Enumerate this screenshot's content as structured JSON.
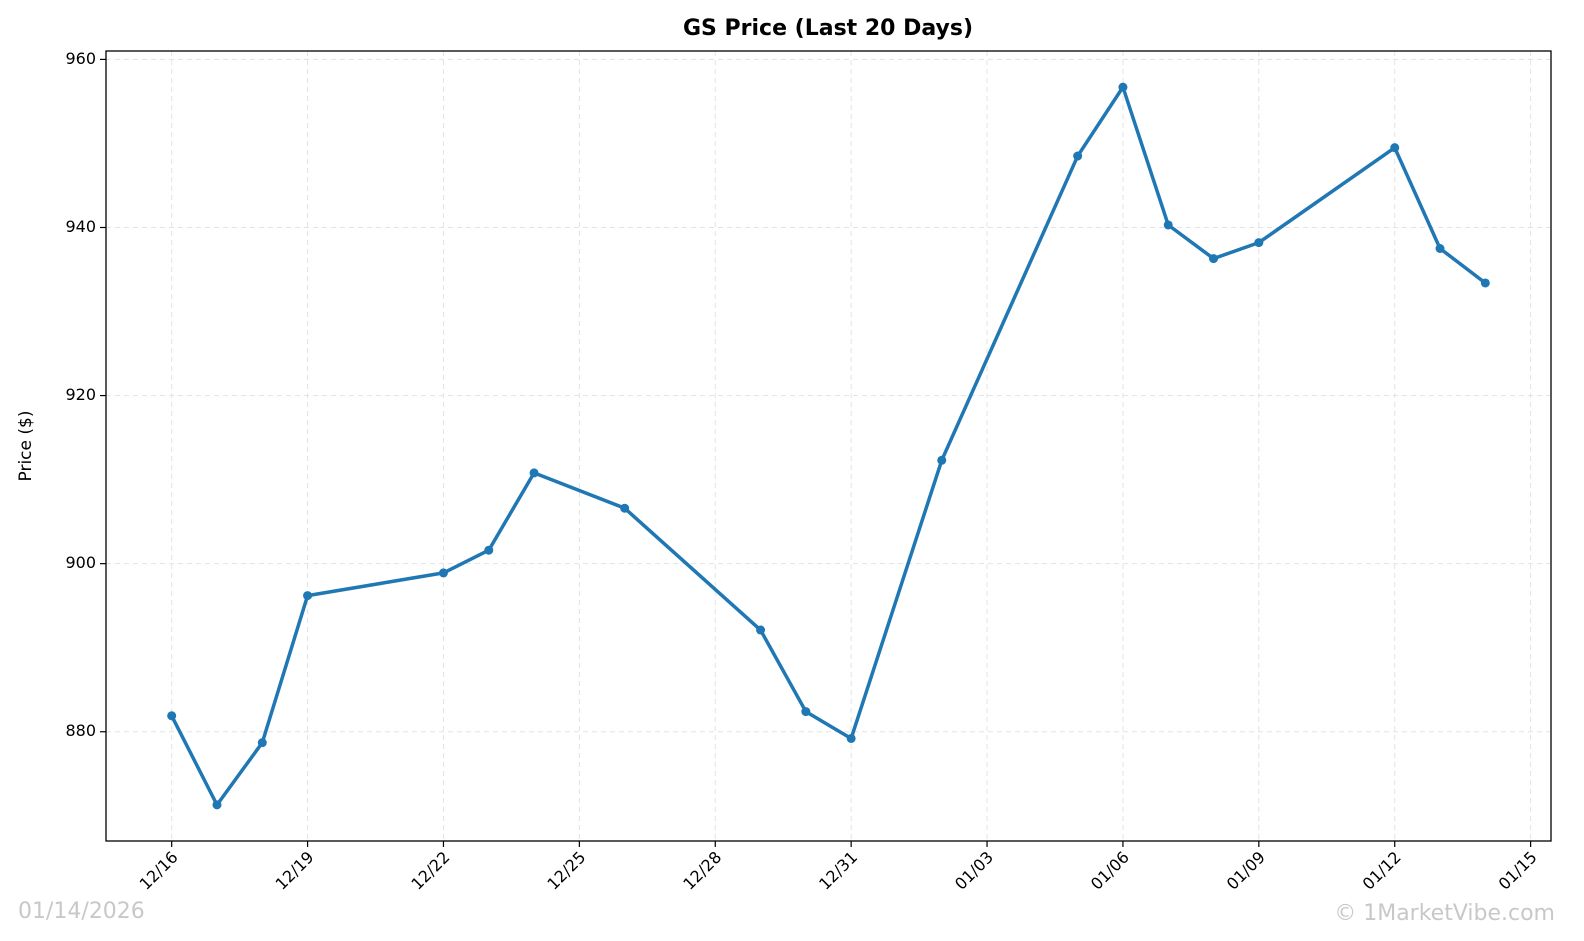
{
  "chart_data": {
    "type": "line",
    "title": "GS Price (Last 20 Days)",
    "ylabel": "Price ($)",
    "x": [
      "12/16",
      "12/17",
      "12/18",
      "12/19",
      "12/22",
      "12/23",
      "12/24",
      "12/26",
      "12/29",
      "12/30",
      "12/31",
      "01/02",
      "01/05",
      "01/06",
      "01/07",
      "01/08",
      "01/09",
      "01/12",
      "01/13",
      "01/14"
    ],
    "series": [
      {
        "name": "GS",
        "color": "#1f77b4",
        "values": [
          881.9,
          871.3,
          878.7,
          896.2,
          898.9,
          901.6,
          910.8,
          906.6,
          892.1,
          882.4,
          879.2,
          912.3,
          948.5,
          956.7,
          940.3,
          936.3,
          938.2,
          949.5,
          937.5,
          933.4
        ]
      }
    ],
    "xticks": [
      "12/16",
      "12/19",
      "12/22",
      "12/25",
      "12/28",
      "12/31",
      "01/03",
      "01/06",
      "01/09",
      "01/12",
      "01/15"
    ],
    "ylim": [
      867,
      961
    ],
    "yticks": [
      880,
      900,
      920,
      940,
      960
    ],
    "grid": true,
    "watermark_left": "01/14/2026",
    "watermark_right": "© 1MarketVibe.com"
  }
}
